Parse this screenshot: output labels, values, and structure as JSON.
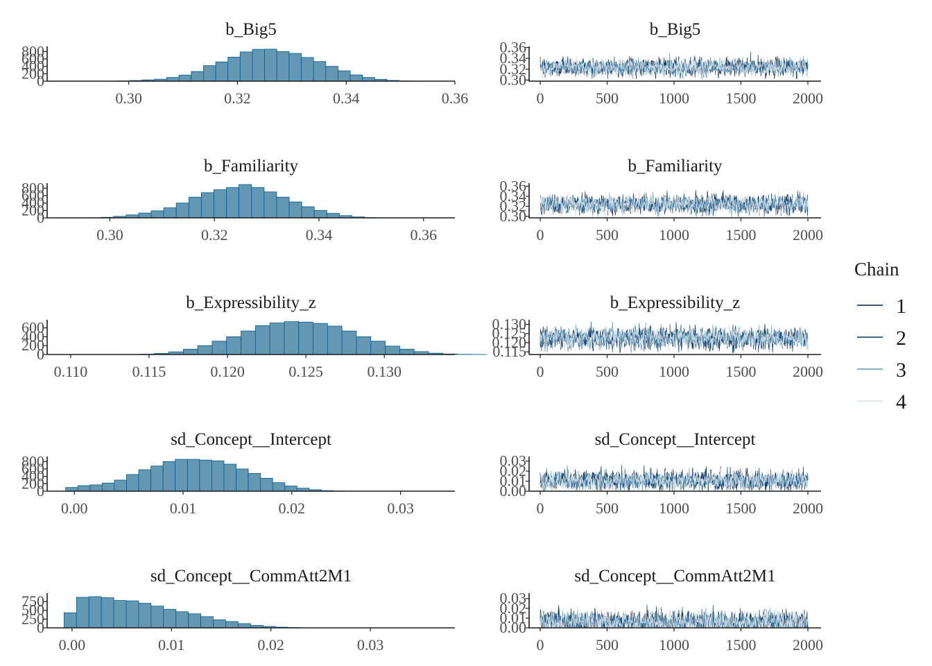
{
  "chart_data": [
    {
      "type": "bar",
      "name": "b_Big5",
      "title": "b_Big5",
      "xlim": [
        0.285,
        0.36
      ],
      "ylim": [
        0,
        900
      ],
      "xticks": [
        "0.30",
        "0.32",
        "0.34",
        "0.36"
      ],
      "xtick_values": [
        0.3,
        0.32,
        0.34,
        0.36
      ],
      "yticks": [
        "0",
        "200",
        "400",
        "600",
        "800"
      ],
      "ytick_values": [
        0,
        200,
        400,
        600,
        800
      ],
      "bin_start": 0.2935,
      "bin_width": 0.00225,
      "values": [
        1,
        3,
        8,
        18,
        35,
        55,
        100,
        165,
        260,
        420,
        520,
        650,
        790,
        860,
        865,
        800,
        750,
        640,
        530,
        400,
        280,
        170,
        100,
        50,
        20,
        7,
        2,
        1
      ]
    },
    {
      "type": "line",
      "name": "trace_b_Big5",
      "title": "b_Big5",
      "xlim": [
        0,
        2000
      ],
      "ylim": [
        0.298,
        0.362
      ],
      "xticks": [
        "0",
        "500",
        "1000",
        "1500",
        "2000"
      ],
      "xtick_values": [
        0,
        500,
        1000,
        1500,
        2000
      ],
      "yticks": [
        "0.30",
        "0.32",
        "0.34",
        "0.36"
      ],
      "ytick_values": [
        0.3,
        0.32,
        0.34,
        0.36
      ],
      "trace": {
        "mean": 0.324,
        "sd": 0.0075,
        "clip": [
          0.302,
          0.358
        ]
      },
      "series": [
        "1",
        "2",
        "3",
        "4"
      ]
    },
    {
      "type": "bar",
      "name": "b_Familiarity",
      "title": "b_Familiarity",
      "xlim": [
        0.288,
        0.366
      ],
      "ylim": [
        0,
        900
      ],
      "xticks": [
        "0.30",
        "0.32",
        "0.34",
        "0.36"
      ],
      "xtick_values": [
        0.3,
        0.32,
        0.34,
        0.36
      ],
      "yticks": [
        "0",
        "200",
        "400",
        "600",
        "800"
      ],
      "ytick_values": [
        0,
        200,
        400,
        600,
        800
      ],
      "bin_start": 0.2935,
      "bin_width": 0.0024,
      "values": [
        2,
        5,
        15,
        40,
        80,
        130,
        190,
        270,
        400,
        560,
        680,
        760,
        820,
        900,
        820,
        700,
        560,
        430,
        300,
        200,
        120,
        60,
        25,
        8,
        3,
        1
      ]
    },
    {
      "type": "line",
      "name": "trace_b_Familiarity",
      "title": "b_Familiarity",
      "xlim": [
        0,
        2000
      ],
      "ylim": [
        0.297,
        0.366
      ],
      "xticks": [
        "0",
        "500",
        "1000",
        "1500",
        "2000"
      ],
      "xtick_values": [
        0,
        500,
        1000,
        1500,
        2000
      ],
      "yticks": [
        "0.30",
        "0.32",
        "0.34",
        "0.36"
      ],
      "ytick_values": [
        0.3,
        0.32,
        0.34,
        0.36
      ],
      "trace": {
        "mean": 0.324,
        "sd": 0.0085,
        "clip": [
          0.299,
          0.362
        ]
      },
      "series": [
        "1",
        "2",
        "3",
        "4"
      ]
    },
    {
      "type": "bar",
      "name": "b_Expressibility_z",
      "title": "b_Expressibility_z",
      "xlim": [
        0.1085,
        0.1345
      ],
      "ylim": [
        0,
        750
      ],
      "xticks": [
        "0.110",
        "0.115",
        "0.120",
        "0.125",
        "0.130"
      ],
      "xtick_values": [
        0.11,
        0.115,
        0.12,
        0.125,
        0.13
      ],
      "yticks": [
        "0",
        "200",
        "400",
        "600"
      ],
      "ytick_values": [
        0,
        200,
        400,
        600
      ],
      "bin_start": 0.1135,
      "bin_width": 0.00092,
      "values": [
        2,
        8,
        25,
        60,
        120,
        200,
        300,
        400,
        530,
        650,
        710,
        740,
        730,
        700,
        640,
        530,
        400,
        300,
        190,
        120,
        65,
        30,
        12,
        4,
        1
      ]
    },
    {
      "type": "line",
      "name": "trace_b_Expressibility_z",
      "title": "b_Expressibility_z",
      "xlim": [
        0,
        2000
      ],
      "ylim": [
        0.1135,
        0.1325
      ],
      "xticks": [
        "0",
        "500",
        "1000",
        "1500",
        "2000"
      ],
      "xtick_values": [
        0,
        500,
        1000,
        1500,
        2000
      ],
      "yticks": [
        "0.115",
        "0.120",
        "0.125",
        "0.130"
      ],
      "ytick_values": [
        0.115,
        0.12,
        0.125,
        0.13
      ],
      "trace": {
        "mean": 0.1225,
        "sd": 0.0027,
        "clip": [
          0.1145,
          0.1315
        ]
      },
      "series": [
        "1",
        "2",
        "3",
        "4"
      ]
    },
    {
      "type": "bar",
      "name": "sd_Concept__Intercept",
      "title": "sd_Concept__Intercept",
      "xlim": [
        -0.0025,
        0.035
      ],
      "ylim": [
        0,
        900
      ],
      "xticks": [
        "0.00",
        "0.01",
        "0.02",
        "0.03"
      ],
      "xtick_values": [
        0.0,
        0.01,
        0.02,
        0.03
      ],
      "yticks": [
        "0",
        "200",
        "400",
        "600",
        "800"
      ],
      "ytick_values": [
        0,
        200,
        400,
        600,
        800
      ],
      "bin_start": -0.0008,
      "bin_width": 0.00112,
      "values": [
        100,
        150,
        170,
        220,
        300,
        450,
        580,
        680,
        800,
        860,
        860,
        840,
        820,
        730,
        600,
        480,
        350,
        230,
        140,
        80,
        40,
        15,
        5,
        2,
        1
      ]
    },
    {
      "type": "line",
      "name": "trace_sd_Concept__Intercept",
      "title": "sd_Concept__Intercept",
      "xlim": [
        0,
        2000
      ],
      "ylim": [
        0,
        0.0345
      ],
      "xticks": [
        "0",
        "500",
        "1000",
        "1500",
        "2000"
      ],
      "xtick_values": [
        0,
        500,
        1000,
        1500,
        2000
      ],
      "yticks": [
        "0.00",
        "0.01",
        "0.02",
        "0.03"
      ],
      "ytick_values": [
        0.0,
        0.01,
        0.02,
        0.03
      ],
      "trace": {
        "mean": 0.0105,
        "sd": 0.0045,
        "clip": [
          0.0002,
          0.033
        ]
      },
      "series": [
        "1",
        "2",
        "3",
        "4"
      ]
    },
    {
      "type": "bar",
      "name": "sd_Concept__CommAtt2M1",
      "title": "sd_Concept__CommAtt2M1",
      "xlim": [
        -0.0025,
        0.0385
      ],
      "ylim": [
        0,
        950
      ],
      "xticks": [
        "0.00",
        "0.01",
        "0.02",
        "0.03"
      ],
      "xtick_values": [
        0.0,
        0.01,
        0.02,
        0.03
      ],
      "yticks": [
        "0",
        "250",
        "500",
        "750"
      ],
      "ytick_values": [
        0,
        250,
        500,
        750
      ],
      "bin_start": -0.0008,
      "bin_width": 0.00125,
      "values": [
        430,
        870,
        890,
        860,
        780,
        770,
        700,
        620,
        530,
        460,
        400,
        320,
        230,
        180,
        120,
        70,
        40,
        20,
        8,
        3
      ]
    },
    {
      "type": "line",
      "name": "trace_sd_Concept__CommAtt2M1",
      "title": "sd_Concept__CommAtt2M1",
      "xlim": [
        0,
        2000
      ],
      "ylim": [
        0,
        0.0355
      ],
      "xticks": [
        "0",
        "500",
        "1000",
        "1500",
        "2000"
      ],
      "xtick_values": [
        0,
        500,
        1000,
        1500,
        2000
      ],
      "yticks": [
        "0.00",
        "0.01",
        "0.02",
        "0.03"
      ],
      "ytick_values": [
        0.0,
        0.01,
        0.02,
        0.03
      ],
      "trace": {
        "mean": 0.0055,
        "sd": 0.0055,
        "clip": [
          0.0001,
          0.034
        ]
      },
      "series": [
        "1",
        "2",
        "3",
        "4"
      ]
    }
  ],
  "legend": {
    "title": "Chain",
    "items": [
      {
        "label": "1",
        "color": "#011f4b"
      },
      {
        "label": "2",
        "color": "#03396c"
      },
      {
        "label": "3",
        "color": "#6497b1"
      },
      {
        "label": "4",
        "color": "#d1e1ec"
      }
    ]
  },
  "colors": {
    "hist_fill": "#6497b1",
    "hist_outline": "#005b96",
    "axis": "#1a1a1a",
    "tick_text": "#4d4d4d"
  }
}
